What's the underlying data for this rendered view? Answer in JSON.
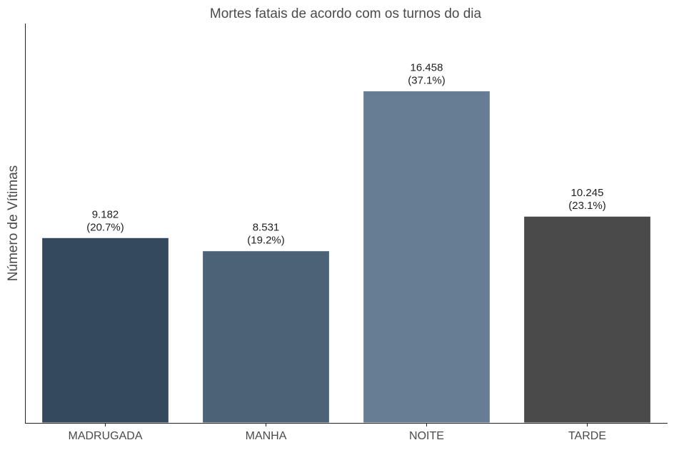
{
  "chart_data": {
    "type": "bar",
    "title": "Mortes fatais de acordo com os turnos do dia",
    "xlabel": "",
    "ylabel": "Número de Vítimas",
    "categories": [
      "MADRUGADA",
      "MANHA",
      "NOITE",
      "TARDE"
    ],
    "values": [
      9182,
      8531,
      16458,
      10245
    ],
    "value_labels": [
      "9.182",
      "8.531",
      "16.458",
      "10.245"
    ],
    "percent_labels": [
      "(20.7%)",
      "(19.2%)",
      "(37.1%)",
      "(23.1%)"
    ],
    "colors": [
      "#34495e",
      "#4c6277",
      "#667d93",
      "#4a4a4a"
    ],
    "ylim": [
      0,
      19800
    ],
    "grid": false,
    "yticks_visible": false
  }
}
